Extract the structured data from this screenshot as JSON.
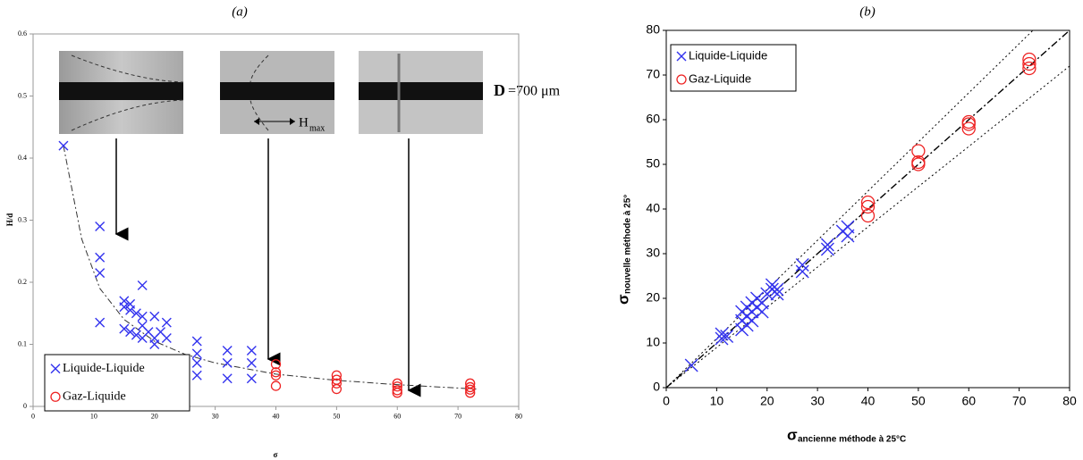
{
  "chart_data": [
    {
      "type": "scatter",
      "title": "(a)",
      "xlabel": "σ",
      "ylabel": "H/d",
      "xlim": [
        0,
        80
      ],
      "xticks": [
        0,
        10,
        20,
        30,
        40,
        50,
        60,
        70,
        80
      ],
      "ylim": [
        0,
        0.6
      ],
      "yticks": [
        0,
        0.1,
        0.2,
        0.3,
        0.4,
        0.5,
        0.6
      ],
      "legend": "lower left",
      "annotations": {
        "diameter_symbol": "D",
        "diameter_value": "=700 μm",
        "hmax": "H",
        "hmax_sub": "max"
      },
      "series": [
        {
          "name": "Liquide-Liquide",
          "color": "#3333ee",
          "marker": "x",
          "x": [
            5,
            11,
            11,
            11,
            11,
            15,
            15,
            15,
            16,
            16,
            16,
            17,
            17,
            18,
            18,
            18,
            18,
            19,
            20,
            20,
            20,
            21,
            22,
            22,
            27,
            27,
            27,
            27,
            32,
            32,
            32,
            36,
            36,
            36
          ],
          "values": [
            0.42,
            0.29,
            0.24,
            0.215,
            0.135,
            0.17,
            0.16,
            0.125,
            0.165,
            0.155,
            0.12,
            0.15,
            0.115,
            0.195,
            0.145,
            0.13,
            0.11,
            0.12,
            0.145,
            0.11,
            0.1,
            0.12,
            0.135,
            0.11,
            0.105,
            0.085,
            0.07,
            0.05,
            0.09,
            0.07,
            0.045,
            0.09,
            0.07,
            0.045
          ]
        },
        {
          "name": "Gaz-Liquide",
          "color": "#ee2222",
          "marker": "o",
          "x": [
            40,
            40,
            40,
            40,
            50,
            50,
            50,
            50,
            60,
            60,
            60,
            60,
            72,
            72,
            72,
            72
          ],
          "values": [
            0.068,
            0.055,
            0.05,
            0.033,
            0.05,
            0.043,
            0.037,
            0.028,
            0.037,
            0.032,
            0.026,
            0.022,
            0.037,
            0.031,
            0.027,
            0.022
          ]
        }
      ],
      "trend": {
        "x": [
          5,
          8,
          11,
          15,
          20,
          25,
          30,
          40,
          50,
          60,
          73
        ],
        "values": [
          0.42,
          0.27,
          0.19,
          0.14,
          0.105,
          0.084,
          0.07,
          0.052,
          0.042,
          0.035,
          0.028
        ]
      }
    },
    {
      "type": "scatter",
      "title": "(b)",
      "xlabel": "σ",
      "xlabel_sub": "ancienne méthode à 25°C",
      "ylabel": "σ",
      "ylabel_sub": "nouvelle méthode à 25°",
      "xlim": [
        0,
        80
      ],
      "xticks": [
        0,
        10,
        20,
        30,
        40,
        50,
        60,
        70,
        80
      ],
      "ylim": [
        0,
        80
      ],
      "yticks": [
        0,
        10,
        20,
        30,
        40,
        50,
        60,
        70,
        80
      ],
      "legend": "upper left",
      "ref_lines": [
        {
          "slope": 1,
          "style": "dashdot"
        },
        {
          "slope": 1.1,
          "style": "dotted"
        },
        {
          "slope": 0.9,
          "style": "dotted"
        }
      ],
      "series": [
        {
          "name": "Liquide-Liquide",
          "color": "#3333ee",
          "marker": "x",
          "x": [
            5,
            11,
            11,
            12,
            15,
            15,
            15,
            16,
            16,
            16,
            17,
            17,
            17,
            18,
            18,
            19,
            19,
            20,
            21,
            21,
            22,
            22,
            27,
            27,
            32,
            32,
            36,
            36,
            35
          ],
          "values": [
            5,
            11,
            12,
            11.5,
            13,
            15,
            17,
            14,
            16,
            18,
            15,
            17,
            19,
            18,
            20,
            17,
            19,
            21,
            22,
            23,
            21,
            22,
            26,
            27.5,
            31,
            32,
            34,
            36,
            35
          ]
        },
        {
          "name": "Gaz-Liquide",
          "color": "#ee2222",
          "marker": "o",
          "x": [
            40,
            40,
            40,
            50,
            50,
            50,
            60,
            60,
            60,
            72,
            72,
            72
          ],
          "values": [
            38.5,
            40.5,
            41.5,
            50,
            50.5,
            53,
            58,
            59,
            59.5,
            71.5,
            72.5,
            73.5
          ]
        }
      ]
    }
  ]
}
